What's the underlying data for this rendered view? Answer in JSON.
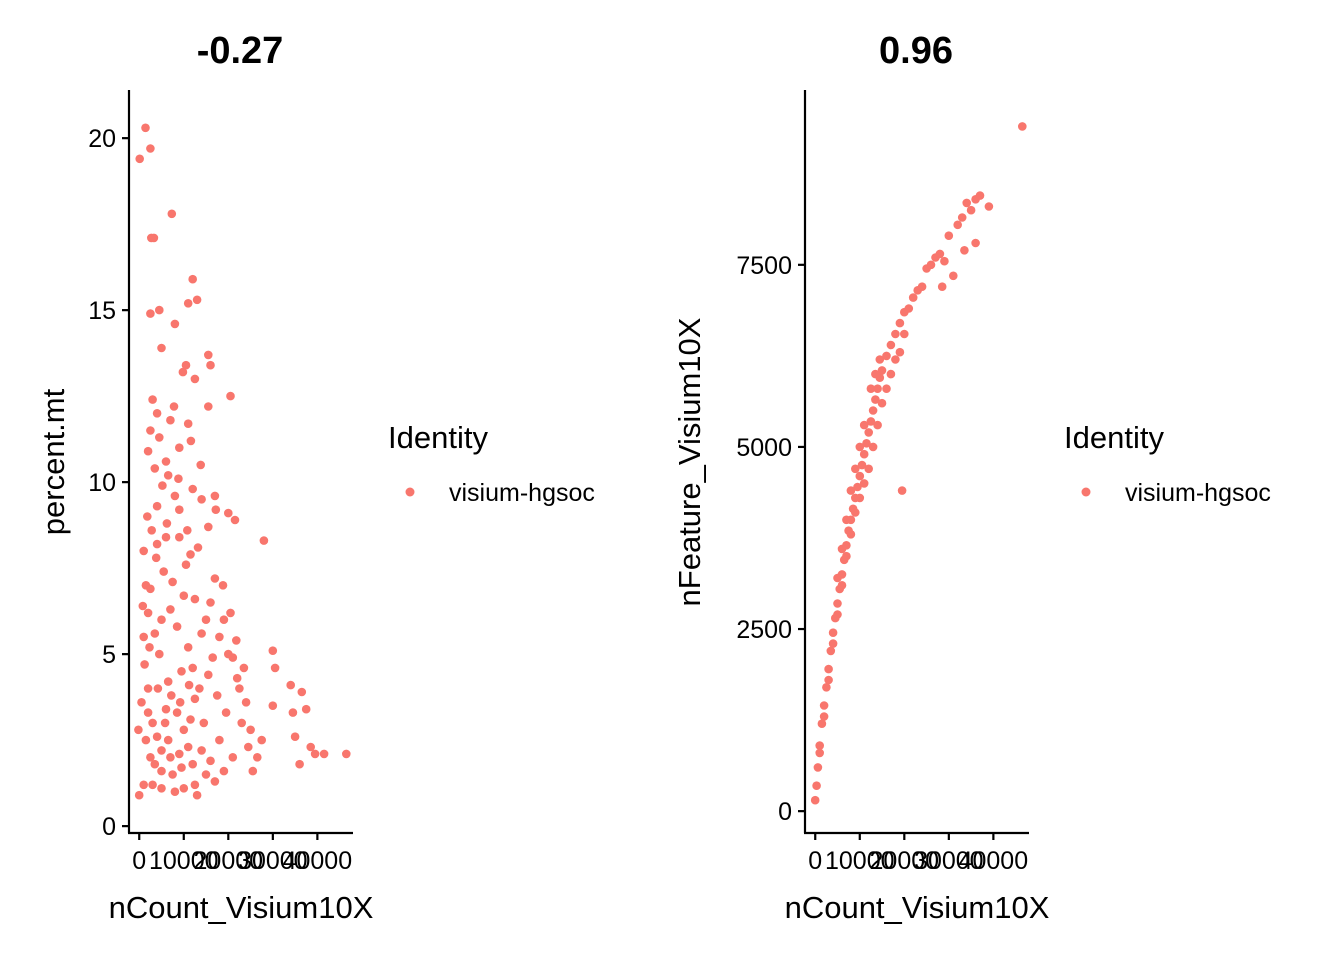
{
  "chart_data": [
    {
      "type": "scatter",
      "title": "-0.27",
      "xlabel": "nCount_Visium10X",
      "ylabel": "percent.mt",
      "xlim": [
        -2300,
        48000
      ],
      "ylim": [
        -0.2,
        21.4
      ],
      "x_ticks": [
        0,
        10000,
        20000,
        30000,
        40000
      ],
      "x_tick_labels": [
        "0",
        "10000",
        "20000",
        "30000",
        "40000"
      ],
      "y_ticks": [
        0,
        5,
        10,
        15,
        20
      ],
      "y_tick_labels": [
        "0",
        "5",
        "10",
        "15",
        "20"
      ],
      "grid": false,
      "legend": {
        "title": "Identity",
        "entries": [
          "visium-hgsoc"
        ],
        "position": "right"
      },
      "color": "#F8766D",
      "series": [
        {
          "name": "visium-hgsoc",
          "points": [
            [
              100,
              19.4
            ],
            [
              1400,
              20.3
            ],
            [
              2500,
              19.7
            ],
            [
              7300,
              17.8
            ],
            [
              2700,
              17.1
            ],
            [
              3300,
              17.1
            ],
            [
              12000,
              15.9
            ],
            [
              13000,
              15.3
            ],
            [
              11000,
              15.2
            ],
            [
              2500,
              14.9
            ],
            [
              4500,
              15.0
            ],
            [
              8000,
              14.6
            ],
            [
              5000,
              13.9
            ],
            [
              15500,
              13.7
            ],
            [
              16000,
              13.4
            ],
            [
              10500,
              13.4
            ],
            [
              12500,
              13.0
            ],
            [
              20500,
              12.5
            ],
            [
              15500,
              12.2
            ],
            [
              4000,
              12.0
            ],
            [
              2500,
              11.5
            ],
            [
              7000,
              11.8
            ],
            [
              9000,
              11.0
            ],
            [
              11000,
              11.7
            ],
            [
              3500,
              10.4
            ],
            [
              2000,
              10.9
            ],
            [
              6500,
              10.2
            ],
            [
              12000,
              9.8
            ],
            [
              14000,
              9.5
            ],
            [
              17000,
              9.6
            ],
            [
              20000,
              9.1
            ],
            [
              21500,
              8.9
            ],
            [
              28000,
              8.3
            ],
            [
              15500,
              8.7
            ],
            [
              4000,
              9.3
            ],
            [
              6000,
              8.4
            ],
            [
              30000,
              5.1
            ],
            [
              30500,
              4.6
            ],
            [
              34000,
              4.1
            ],
            [
              36500,
              3.9
            ],
            [
              34500,
              3.3
            ],
            [
              37500,
              3.4
            ],
            [
              35000,
              2.6
            ],
            [
              38500,
              2.3
            ],
            [
              39500,
              2.1
            ],
            [
              46500,
              2.1
            ],
            [
              41500,
              2.1
            ],
            [
              36000,
              1.8
            ],
            [
              30000,
              3.5
            ],
            [
              27500,
              2.5
            ],
            [
              24500,
              2.3
            ],
            [
              25500,
              1.6
            ],
            [
              26500,
              2.0
            ],
            [
              23000,
              3.0
            ],
            [
              22000,
              4.3
            ],
            [
              21000,
              4.9
            ],
            [
              19000,
              6.0
            ],
            [
              17000,
              7.2
            ],
            [
              16000,
              6.5
            ],
            [
              18000,
              5.5
            ],
            [
              20000,
              5.0
            ],
            [
              22500,
              4.0
            ],
            [
              19500,
              3.3
            ],
            [
              18000,
              2.5
            ],
            [
              16000,
              1.9
            ],
            [
              13000,
              0.9
            ],
            [
              0,
              0.9
            ],
            [
              1000,
              1.2
            ],
            [
              3000,
              1.2
            ],
            [
              5000,
              1.1
            ],
            [
              8000,
              1.0
            ],
            [
              10000,
              1.1
            ],
            [
              -200,
              2.8
            ],
            [
              2500,
              2.0
            ],
            [
              5000,
              1.6
            ],
            [
              7500,
              1.5
            ],
            [
              9500,
              1.7
            ],
            [
              12000,
              1.8
            ],
            [
              14000,
              2.2
            ],
            [
              11500,
              3.1
            ],
            [
              13500,
              4.0
            ],
            [
              15500,
              4.4
            ],
            [
              14000,
              5.6
            ],
            [
              12500,
              6.6
            ],
            [
              10500,
              7.6
            ],
            [
              9000,
              8.4
            ],
            [
              8000,
              9.6
            ],
            [
              6000,
              10.6
            ],
            [
              4500,
              11.3
            ],
            [
              3000,
              12.4
            ],
            [
              1500,
              7.0
            ],
            [
              1000,
              5.5
            ],
            [
              2000,
              4.0
            ],
            [
              3000,
              3.0
            ],
            [
              6500,
              2.5
            ],
            [
              8500,
              3.3
            ],
            [
              9500,
              4.5
            ],
            [
              11000,
              5.2
            ],
            [
              12500,
              3.7
            ],
            [
              14500,
              3.0
            ],
            [
              17500,
              3.8
            ],
            [
              16500,
              4.9
            ],
            [
              7000,
              6.3
            ],
            [
              5500,
              7.4
            ],
            [
              4000,
              8.2
            ],
            [
              2000,
              6.2
            ],
            [
              1200,
              4.7
            ],
            [
              4500,
              5.0
            ],
            [
              6500,
              4.2
            ],
            [
              8500,
              5.8
            ],
            [
              10000,
              6.7
            ],
            [
              11500,
              7.9
            ],
            [
              9000,
              9.2
            ],
            [
              7500,
              7.1
            ],
            [
              5000,
              6.0
            ],
            [
              3500,
              5.6
            ],
            [
              2500,
              6.9
            ],
            [
              3800,
              7.8
            ],
            [
              6200,
              8.8
            ],
            [
              8800,
              10.1
            ],
            [
              10800,
              8.6
            ],
            [
              13200,
              8.1
            ],
            [
              15000,
              6.0
            ],
            [
              12000,
              4.6
            ],
            [
              10000,
              2.8
            ],
            [
              6000,
              3.4
            ],
            [
              4000,
              2.6
            ],
            [
              2000,
              3.3
            ],
            [
              1000,
              8.0
            ],
            [
              1800,
              9.0
            ],
            [
              2800,
              8.6
            ],
            [
              5200,
              9.9
            ],
            [
              7800,
              12.2
            ],
            [
              9800,
              13.2
            ],
            [
              11600,
              11.2
            ],
            [
              13800,
              10.5
            ],
            [
              17200,
              9.2
            ],
            [
              18800,
              7.0
            ],
            [
              20500,
              6.2
            ],
            [
              21800,
              5.4
            ],
            [
              23500,
              4.6
            ],
            [
              24000,
              3.6
            ],
            [
              25000,
              2.8
            ],
            [
              21000,
              2.0
            ],
            [
              19000,
              1.6
            ],
            [
              17000,
              1.3
            ],
            [
              15000,
              1.5
            ],
            [
              12500,
              1.2
            ],
            [
              11000,
              2.3
            ],
            [
              9000,
              2.1
            ],
            [
              7000,
              2.0
            ],
            [
              5000,
              2.2
            ],
            [
              3500,
              1.8
            ],
            [
              1500,
              2.5
            ],
            [
              500,
              3.6
            ],
            [
              800,
              6.4
            ],
            [
              2300,
              5.2
            ],
            [
              4200,
              4.0
            ],
            [
              5800,
              3.0
            ],
            [
              7200,
              3.8
            ],
            [
              9200,
              3.6
            ],
            [
              11200,
              4.1
            ]
          ]
        }
      ]
    },
    {
      "type": "scatter",
      "title": "0.96",
      "xlabel": "nCount_Visium10X",
      "ylabel": "nFeature_Visium10X",
      "xlim": [
        -2300,
        48000
      ],
      "ylim": [
        -300,
        9900
      ],
      "x_ticks": [
        0,
        10000,
        20000,
        30000,
        40000
      ],
      "x_tick_labels": [
        "0",
        "10000",
        "20000",
        "30000",
        "40000"
      ],
      "y_ticks": [
        0,
        2500,
        5000,
        7500
      ],
      "y_tick_labels": [
        "0",
        "2500",
        "5000",
        "7500"
      ],
      "grid": false,
      "legend": {
        "title": "Identity",
        "entries": [
          "visium-hgsoc"
        ],
        "position": "right"
      },
      "color": "#F8766D",
      "series": [
        {
          "name": "visium-hgsoc",
          "points": [
            [
              0,
              150
            ],
            [
              300,
              350
            ],
            [
              600,
              600
            ],
            [
              1000,
              900
            ],
            [
              1500,
              1200
            ],
            [
              2000,
              1450
            ],
            [
              2500,
              1700
            ],
            [
              3000,
              1950
            ],
            [
              3500,
              2200
            ],
            [
              4000,
              2450
            ],
            [
              4500,
              2650
            ],
            [
              5000,
              2850
            ],
            [
              5500,
              3050
            ],
            [
              6000,
              3250
            ],
            [
              6500,
              3450
            ],
            [
              7000,
              3650
            ],
            [
              7500,
              3850
            ],
            [
              8000,
              4000
            ],
            [
              8500,
              4150
            ],
            [
              9000,
              4300
            ],
            [
              9500,
              4450
            ],
            [
              10000,
              4600
            ],
            [
              10500,
              4750
            ],
            [
              11000,
              4900
            ],
            [
              11500,
              5050
            ],
            [
              12000,
              5200
            ],
            [
              12500,
              5350
            ],
            [
              13000,
              5500
            ],
            [
              13500,
              5650
            ],
            [
              14000,
              5800
            ],
            [
              14500,
              5950
            ],
            [
              15000,
              6050
            ],
            [
              16000,
              6250
            ],
            [
              17000,
              6400
            ],
            [
              18000,
              6550
            ],
            [
              19000,
              6700
            ],
            [
              20000,
              6850
            ],
            [
              21000,
              6900
            ],
            [
              22000,
              7050
            ],
            [
              23000,
              7150
            ],
            [
              24000,
              7200
            ],
            [
              25000,
              7450
            ],
            [
              26000,
              7500
            ],
            [
              27000,
              7600
            ],
            [
              28000,
              7650
            ],
            [
              29000,
              7550
            ],
            [
              30000,
              7900
            ],
            [
              32000,
              8050
            ],
            [
              33000,
              8150
            ],
            [
              34000,
              8350
            ],
            [
              35000,
              8250
            ],
            [
              36000,
              8400
            ],
            [
              37000,
              8450
            ],
            [
              39000,
              8300
            ],
            [
              36000,
              7800
            ],
            [
              33500,
              7700
            ],
            [
              31000,
              7350
            ],
            [
              28500,
              7200
            ],
            [
              46500,
              9400
            ],
            [
              19500,
              4400
            ],
            [
              10000,
              4300
            ],
            [
              11000,
              4500
            ],
            [
              12000,
              4700
            ],
            [
              13000,
              5000
            ],
            [
              14000,
              5300
            ],
            [
              15000,
              5600
            ],
            [
              16000,
              5800
            ],
            [
              17000,
              6000
            ],
            [
              9000,
              4100
            ],
            [
              8000,
              3800
            ],
            [
              7000,
              3500
            ],
            [
              6000,
              3100
            ],
            [
              5000,
              2700
            ],
            [
              4000,
              2300
            ],
            [
              3000,
              1800
            ],
            [
              2000,
              1300
            ],
            [
              1000,
              800
            ],
            [
              12500,
              5800
            ],
            [
              13500,
              6000
            ],
            [
              14500,
              6200
            ],
            [
              18000,
              6200
            ],
            [
              19000,
              6300
            ],
            [
              20000,
              6550
            ],
            [
              11000,
              5300
            ],
            [
              10000,
              5000
            ],
            [
              9000,
              4700
            ],
            [
              8000,
              4400
            ],
            [
              7000,
              4000
            ],
            [
              6000,
              3600
            ],
            [
              5000,
              3200
            ]
          ]
        }
      ]
    }
  ]
}
